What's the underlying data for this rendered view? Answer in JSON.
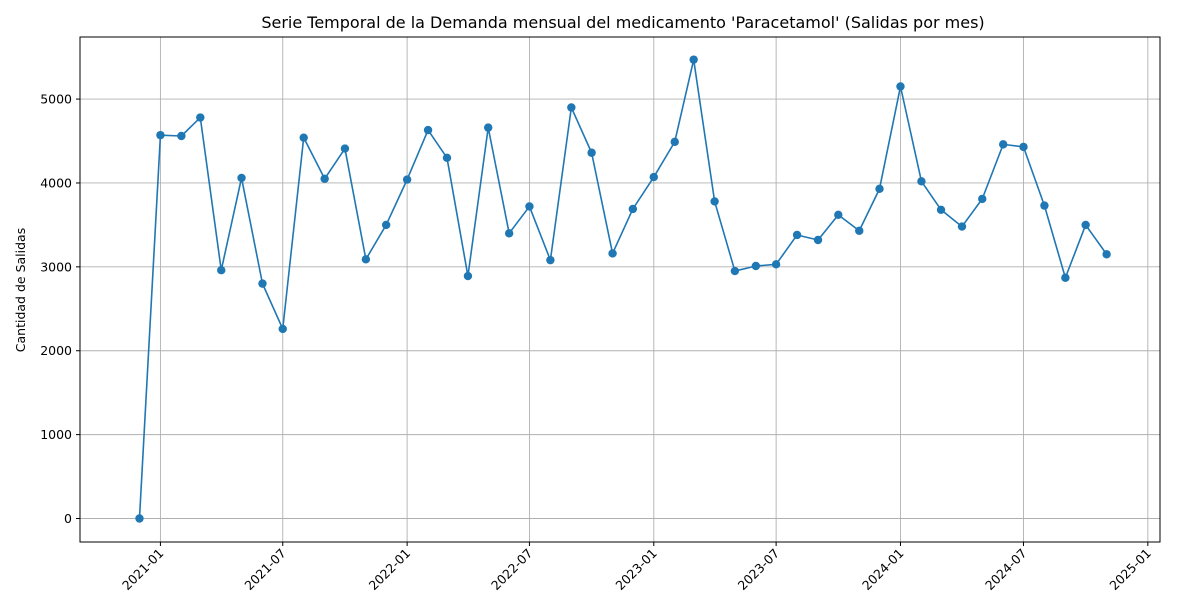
{
  "chart_data": {
    "type": "line",
    "title": "Serie Temporal de la Demanda mensual del medicamento 'Paracetamol' (Salidas por mes)",
    "xlabel": "",
    "ylabel": "Cantidad de Salidas",
    "x_is_date": true,
    "xlim": [
      "2020-09-04",
      "2025-01-19"
    ],
    "ylim": [
      -280,
      5740
    ],
    "x_ticks": [
      "2021-01",
      "2021-07",
      "2022-01",
      "2022-07",
      "2023-01",
      "2023-07",
      "2024-01",
      "2024-07",
      "2025-01"
    ],
    "y_ticks": [
      0,
      1000,
      2000,
      3000,
      4000,
      5000
    ],
    "grid": true,
    "marker": "o",
    "color": "#1f77b4",
    "series": [
      {
        "x": [
          "2020-12-01",
          "2021-01-01",
          "2021-02-01",
          "2021-03-01",
          "2021-04-01",
          "2021-05-01",
          "2021-06-01",
          "2021-07-01",
          "2021-08-01",
          "2021-09-01",
          "2021-10-01",
          "2021-11-01",
          "2021-12-01",
          "2022-01-01",
          "2022-02-01",
          "2022-03-01",
          "2022-04-01",
          "2022-05-01",
          "2022-06-01",
          "2022-07-01",
          "2022-08-01",
          "2022-09-01",
          "2022-10-01",
          "2022-11-01",
          "2022-12-01",
          "2023-01-01",
          "2023-02-01",
          "2023-03-01",
          "2023-04-01",
          "2023-05-01",
          "2023-06-01",
          "2023-07-01",
          "2023-08-01",
          "2023-09-01",
          "2023-10-01",
          "2023-11-01",
          "2023-12-01",
          "2024-01-01",
          "2024-02-01",
          "2024-03-01",
          "2024-04-01",
          "2024-05-01",
          "2024-06-01",
          "2024-07-01",
          "2024-08-01",
          "2024-09-01",
          "2024-10-01",
          "2024-11-01"
        ],
        "values": [
          0,
          4570,
          4560,
          4780,
          2960,
          4060,
          2800,
          2260,
          4540,
          4050,
          4410,
          3090,
          3500,
          4040,
          4630,
          4300,
          2890,
          4660,
          3400,
          3720,
          3080,
          4900,
          4360,
          3160,
          3690,
          4070,
          4490,
          5470,
          3780,
          2950,
          3010,
          3030,
          3380,
          3320,
          3620,
          3430,
          3930,
          5150,
          4020,
          3680,
          3480,
          3810,
          4460,
          4430,
          3730,
          2870,
          3500,
          3150
        ]
      }
    ]
  }
}
